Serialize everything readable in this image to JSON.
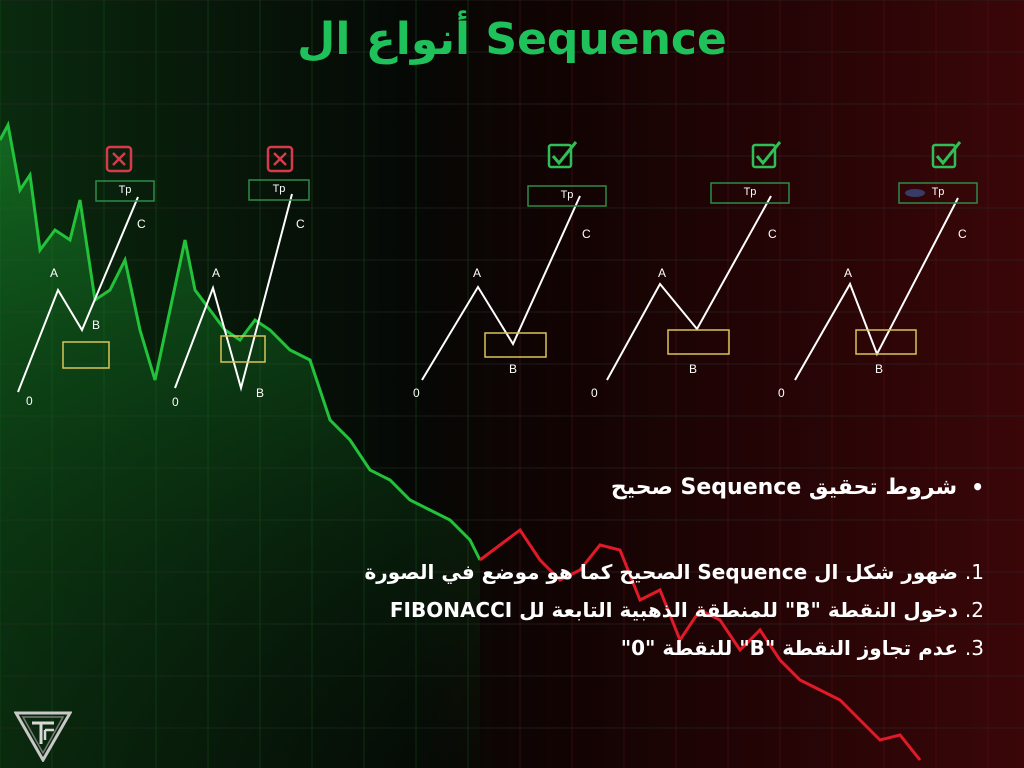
{
  "title": "أنواع ال Sequence",
  "colors": {
    "title": "#1fc15a",
    "check": "#2fbf56",
    "cross": "#d93a4a",
    "tp_box": "#2e8b4a",
    "b_zone": "#d9c45a",
    "up_trend": "#1ea83e",
    "down_trend": "#d61a2a"
  },
  "patterns": [
    {
      "status": "invalid",
      "icon": "x-box-icon",
      "tp": "Tp",
      "labels": {
        "zero": "0",
        "a": "A",
        "b": "B",
        "c": "C"
      }
    },
    {
      "status": "invalid",
      "icon": "x-box-icon",
      "tp": "Tp",
      "labels": {
        "zero": "0",
        "a": "A",
        "b": "B",
        "c": "C"
      }
    },
    {
      "status": "valid",
      "icon": "check-box-icon",
      "tp": "Tp",
      "labels": {
        "zero": "0",
        "a": "A",
        "b": "B",
        "c": "C"
      }
    },
    {
      "status": "valid",
      "icon": "check-box-icon",
      "tp": "Tp",
      "labels": {
        "zero": "0",
        "a": "A",
        "b": "B",
        "c": "C"
      }
    },
    {
      "status": "valid",
      "icon": "check-box-icon",
      "tp": "Tp",
      "labels": {
        "zero": "0",
        "a": "A",
        "b": "B",
        "c": "C"
      }
    }
  ],
  "heading": "شروط تحقيق Sequence صحيح",
  "bullet": "•",
  "conditions": [
    {
      "num": "1.",
      "text": "ضهور شكل ال Sequence الصحيح كما هو موضع في الصورة"
    },
    {
      "num": "2.",
      "text": "دخول النقطة \"B\" للمنطقة الذهبية التابعة لل FIBONACCI"
    },
    {
      "num": "3.",
      "text": "عدم تجاوز النقطة \"B\" للنقطة \"0\""
    }
  ],
  "logo_icon": "tf-triangle-logo-icon"
}
